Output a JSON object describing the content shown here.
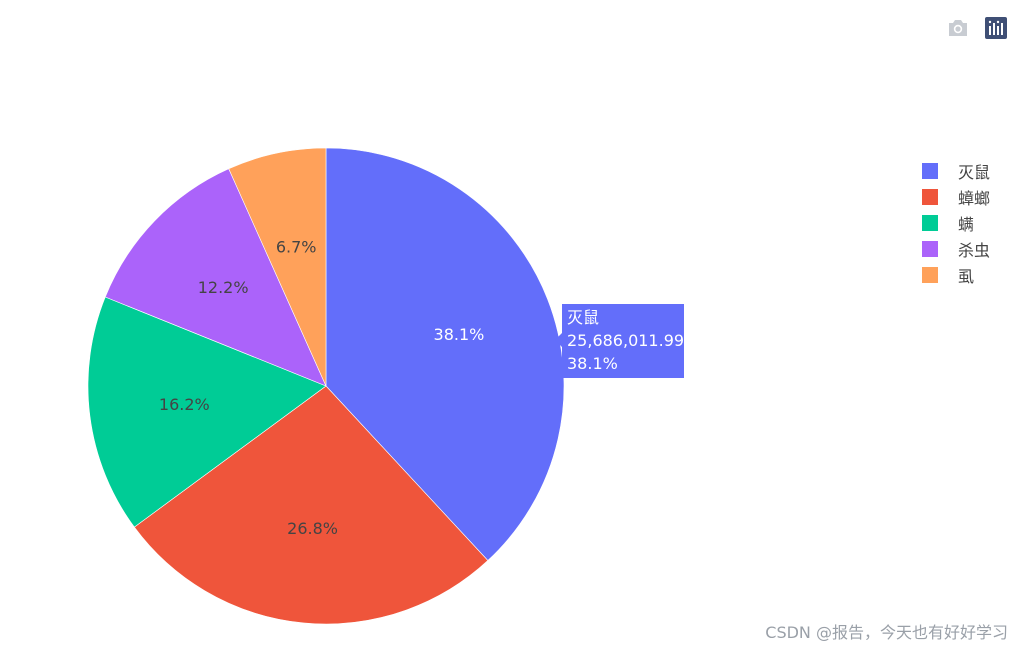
{
  "chart_data": {
    "type": "pie",
    "categories": [
      "灭鼠",
      "蟑螂",
      "螨",
      "杀虫",
      "虱"
    ],
    "percent_labels": [
      "38.1%",
      "26.8%",
      "16.2%",
      "12.2%",
      "6.7%"
    ],
    "values": [
      38.1,
      26.8,
      16.2,
      12.2,
      6.7
    ],
    "colors": [
      "#636efa",
      "#ef553b",
      "#00cc96",
      "#ab63fa",
      "#ffa15a"
    ],
    "label_colors": [
      "#ffffff",
      "#444444",
      "#444444",
      "#444444",
      "#444444"
    ],
    "legend_placement": "top-right",
    "hover": {
      "label": "灭鼠",
      "value": "25,686,011.99",
      "percent": "38.1%"
    }
  },
  "modebar": {
    "camera_icon": "camera-icon",
    "plotly_logo_icon": "plotly-logo-icon"
  },
  "watermark": "CSDN @报告，今天也有好好学习"
}
